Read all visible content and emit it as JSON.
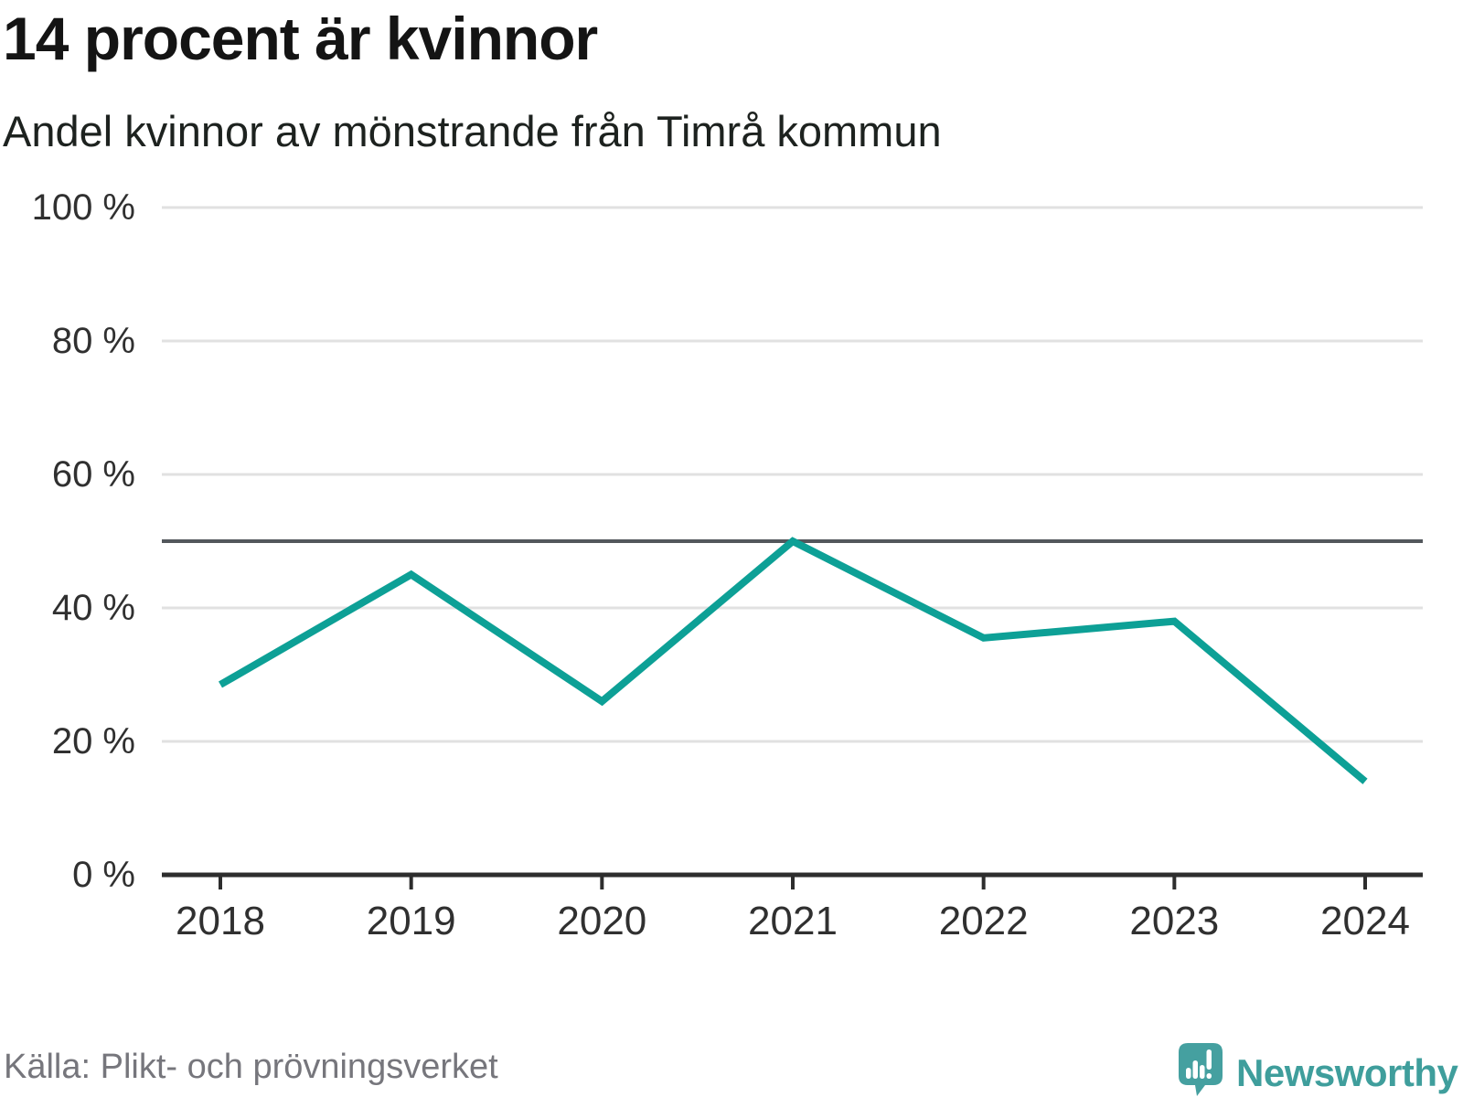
{
  "footer": {
    "source": "Källa: Plikt- och prövningsverket",
    "brand": "Newsworthy"
  },
  "colors": {
    "line": "#0da096",
    "reference_line": "#53575c",
    "grid": "#e1e1e1",
    "axis": "#2d2d2d",
    "tick_label": "#303030",
    "title": "#141414",
    "subtitle": "#1d221f",
    "source_text": "#76767c",
    "brand_teal": "#3f9e9c",
    "brand_icon_teal": "#45a0a0"
  },
  "chart_data": {
    "type": "line",
    "title": "14 procent är kvinnor",
    "subtitle": "Andel kvinnor av mönstrande från Timrå kommun",
    "x": [
      2018,
      2019,
      2020,
      2021,
      2022,
      2023,
      2024
    ],
    "series": [
      {
        "name": "Andel kvinnor av mönstrande",
        "values": [
          28.5,
          45,
          26,
          50,
          35.5,
          38,
          14
        ]
      }
    ],
    "xlabel": "",
    "ylabel": "",
    "ylim": [
      0,
      100
    ],
    "y_ticks": [
      0,
      20,
      40,
      60,
      80,
      100
    ],
    "y_tick_suffix": " %",
    "reference_line": 50,
    "grid": "horizontal",
    "legend": "none",
    "line_color": "#0da096"
  }
}
